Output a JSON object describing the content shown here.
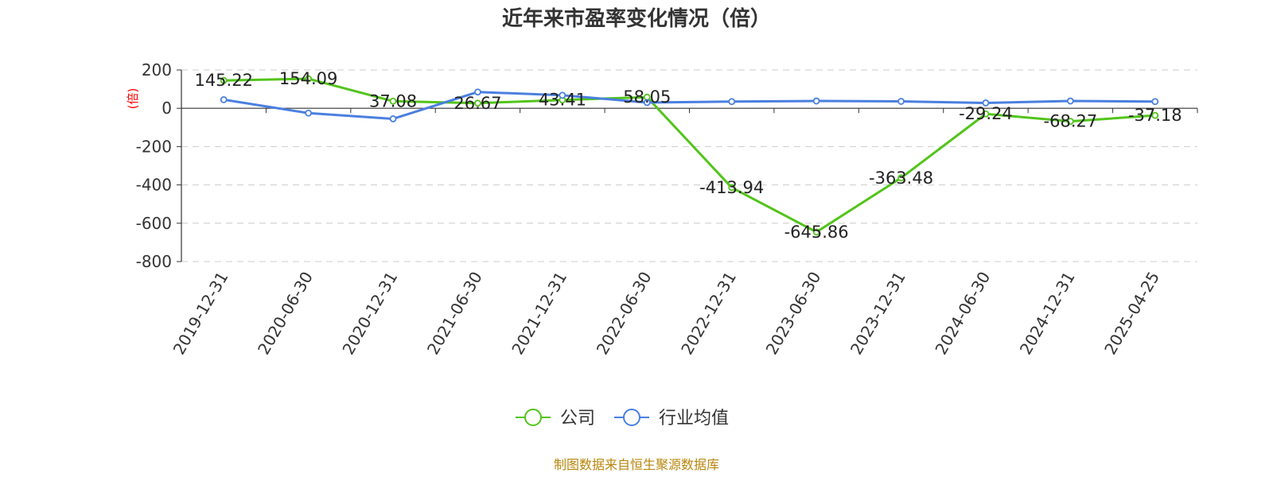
{
  "chart_data": {
    "type": "line",
    "title": "近年来市盈率变化情况（倍）",
    "ylabel": "(倍)",
    "xlabel": "",
    "ylim": [
      -800,
      200
    ],
    "yticks": [
      200,
      0,
      -200,
      -400,
      -600,
      -800
    ],
    "grid": true,
    "legend_position": "bottom",
    "categories": [
      "2019-12-31",
      "2020-06-30",
      "2020-12-31",
      "2021-06-30",
      "2021-12-31",
      "2022-06-30",
      "2022-12-31",
      "2023-06-30",
      "2023-12-31",
      "2024-06-30",
      "2024-12-31",
      "2025-04-25"
    ],
    "series": [
      {
        "name": "公司",
        "color": "#52c41a",
        "values": [
          145.22,
          154.09,
          37.08,
          26.67,
          43.41,
          58.05,
          -413.94,
          -645.86,
          -363.48,
          -29.24,
          -68.27,
          -37.18
        ],
        "labels": [
          "145.22",
          "154.09",
          "37.08",
          "26.67",
          "43.41",
          "58.05",
          "-413.94",
          "-645.86",
          "-363.48",
          "-29.24",
          "-68.27",
          "-37.18"
        ]
      },
      {
        "name": "行业均值",
        "color": "#4a7fe0",
        "values": [
          45,
          -25,
          -55,
          85,
          68,
          30,
          35,
          38,
          36,
          28,
          38,
          35
        ]
      }
    ],
    "source": "制图数据来自恒生聚源数据库"
  }
}
